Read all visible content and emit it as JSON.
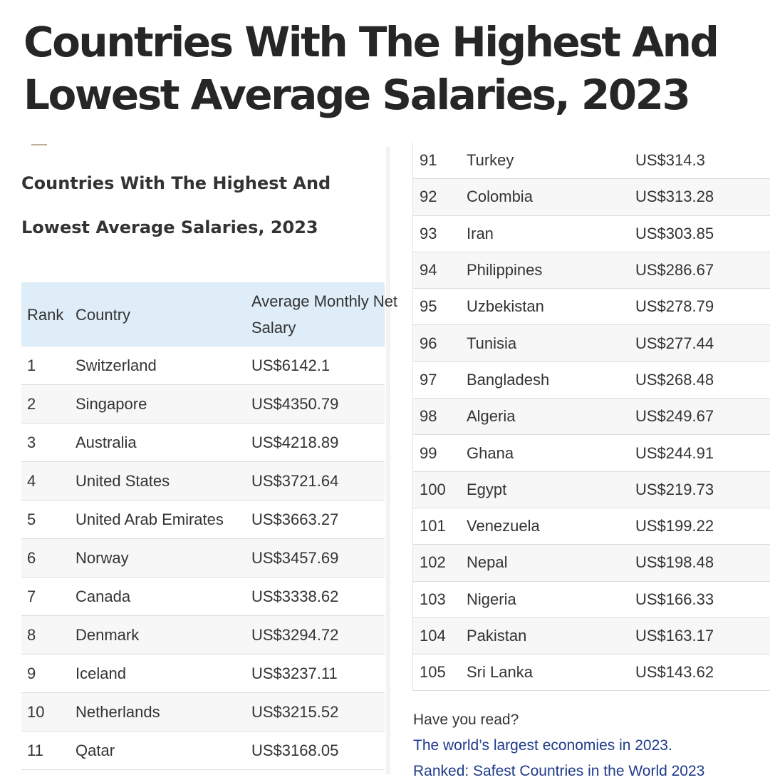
{
  "title": "Countries With The Highest And Lowest Average Salaries, 2023",
  "subtitle": "Countries With The Highest And Lowest Average Salaries, 2023",
  "left_table": {
    "headers": {
      "rank": "Rank",
      "country": "Country",
      "salary": "Average Monthly Net Salary"
    },
    "rows": [
      {
        "rank": "1",
        "country": "Switzerland",
        "salary": "US$6142.1"
      },
      {
        "rank": "2",
        "country": "Singapore",
        "salary": "US$4350.79"
      },
      {
        "rank": "3",
        "country": "Australia",
        "salary": "US$4218.89"
      },
      {
        "rank": "4",
        "country": "United States",
        "salary": "US$3721.64"
      },
      {
        "rank": "5",
        "country": "United Arab Emirates",
        "salary": "US$3663.27"
      },
      {
        "rank": "6",
        "country": "Norway",
        "salary": "US$3457.69"
      },
      {
        "rank": "7",
        "country": "Canada",
        "salary": "US$3338.62"
      },
      {
        "rank": "8",
        "country": "Denmark",
        "salary": "US$3294.72"
      },
      {
        "rank": "9",
        "country": "Iceland",
        "salary": "US$3237.11"
      },
      {
        "rank": "10",
        "country": "Netherlands",
        "salary": "US$3215.52"
      },
      {
        "rank": "11",
        "country": "Qatar",
        "salary": "US$3168.05"
      }
    ]
  },
  "right_table": {
    "rows": [
      {
        "rank": "91",
        "country": "Turkey",
        "salary": "US$314.3"
      },
      {
        "rank": "92",
        "country": "Colombia",
        "salary": "US$313.28"
      },
      {
        "rank": "93",
        "country": "Iran",
        "salary": "US$303.85"
      },
      {
        "rank": "94",
        "country": "Philippines",
        "salary": "US$286.67"
      },
      {
        "rank": "95",
        "country": "Uzbekistan",
        "salary": "US$278.79"
      },
      {
        "rank": "96",
        "country": "Tunisia",
        "salary": "US$277.44"
      },
      {
        "rank": "97",
        "country": "Bangladesh",
        "salary": "US$268.48"
      },
      {
        "rank": "98",
        "country": "Algeria",
        "salary": "US$249.67"
      },
      {
        "rank": "99",
        "country": "Ghana",
        "salary": "US$244.91"
      },
      {
        "rank": "100",
        "country": "Egypt",
        "salary": "US$219.73"
      },
      {
        "rank": "101",
        "country": "Venezuela",
        "salary": "US$199.22"
      },
      {
        "rank": "102",
        "country": "Nepal",
        "salary": "US$198.48"
      },
      {
        "rank": "103",
        "country": "Nigeria",
        "salary": "US$166.33"
      },
      {
        "rank": "104",
        "country": "Pakistan",
        "salary": "US$163.17"
      },
      {
        "rank": "105",
        "country": "Sri Lanka",
        "salary": "US$143.62"
      }
    ]
  },
  "related": {
    "label": "Have you read?",
    "links": [
      "The world’s largest economies in 2023.",
      "Ranked: Safest Countries in the World 2023"
    ]
  }
}
